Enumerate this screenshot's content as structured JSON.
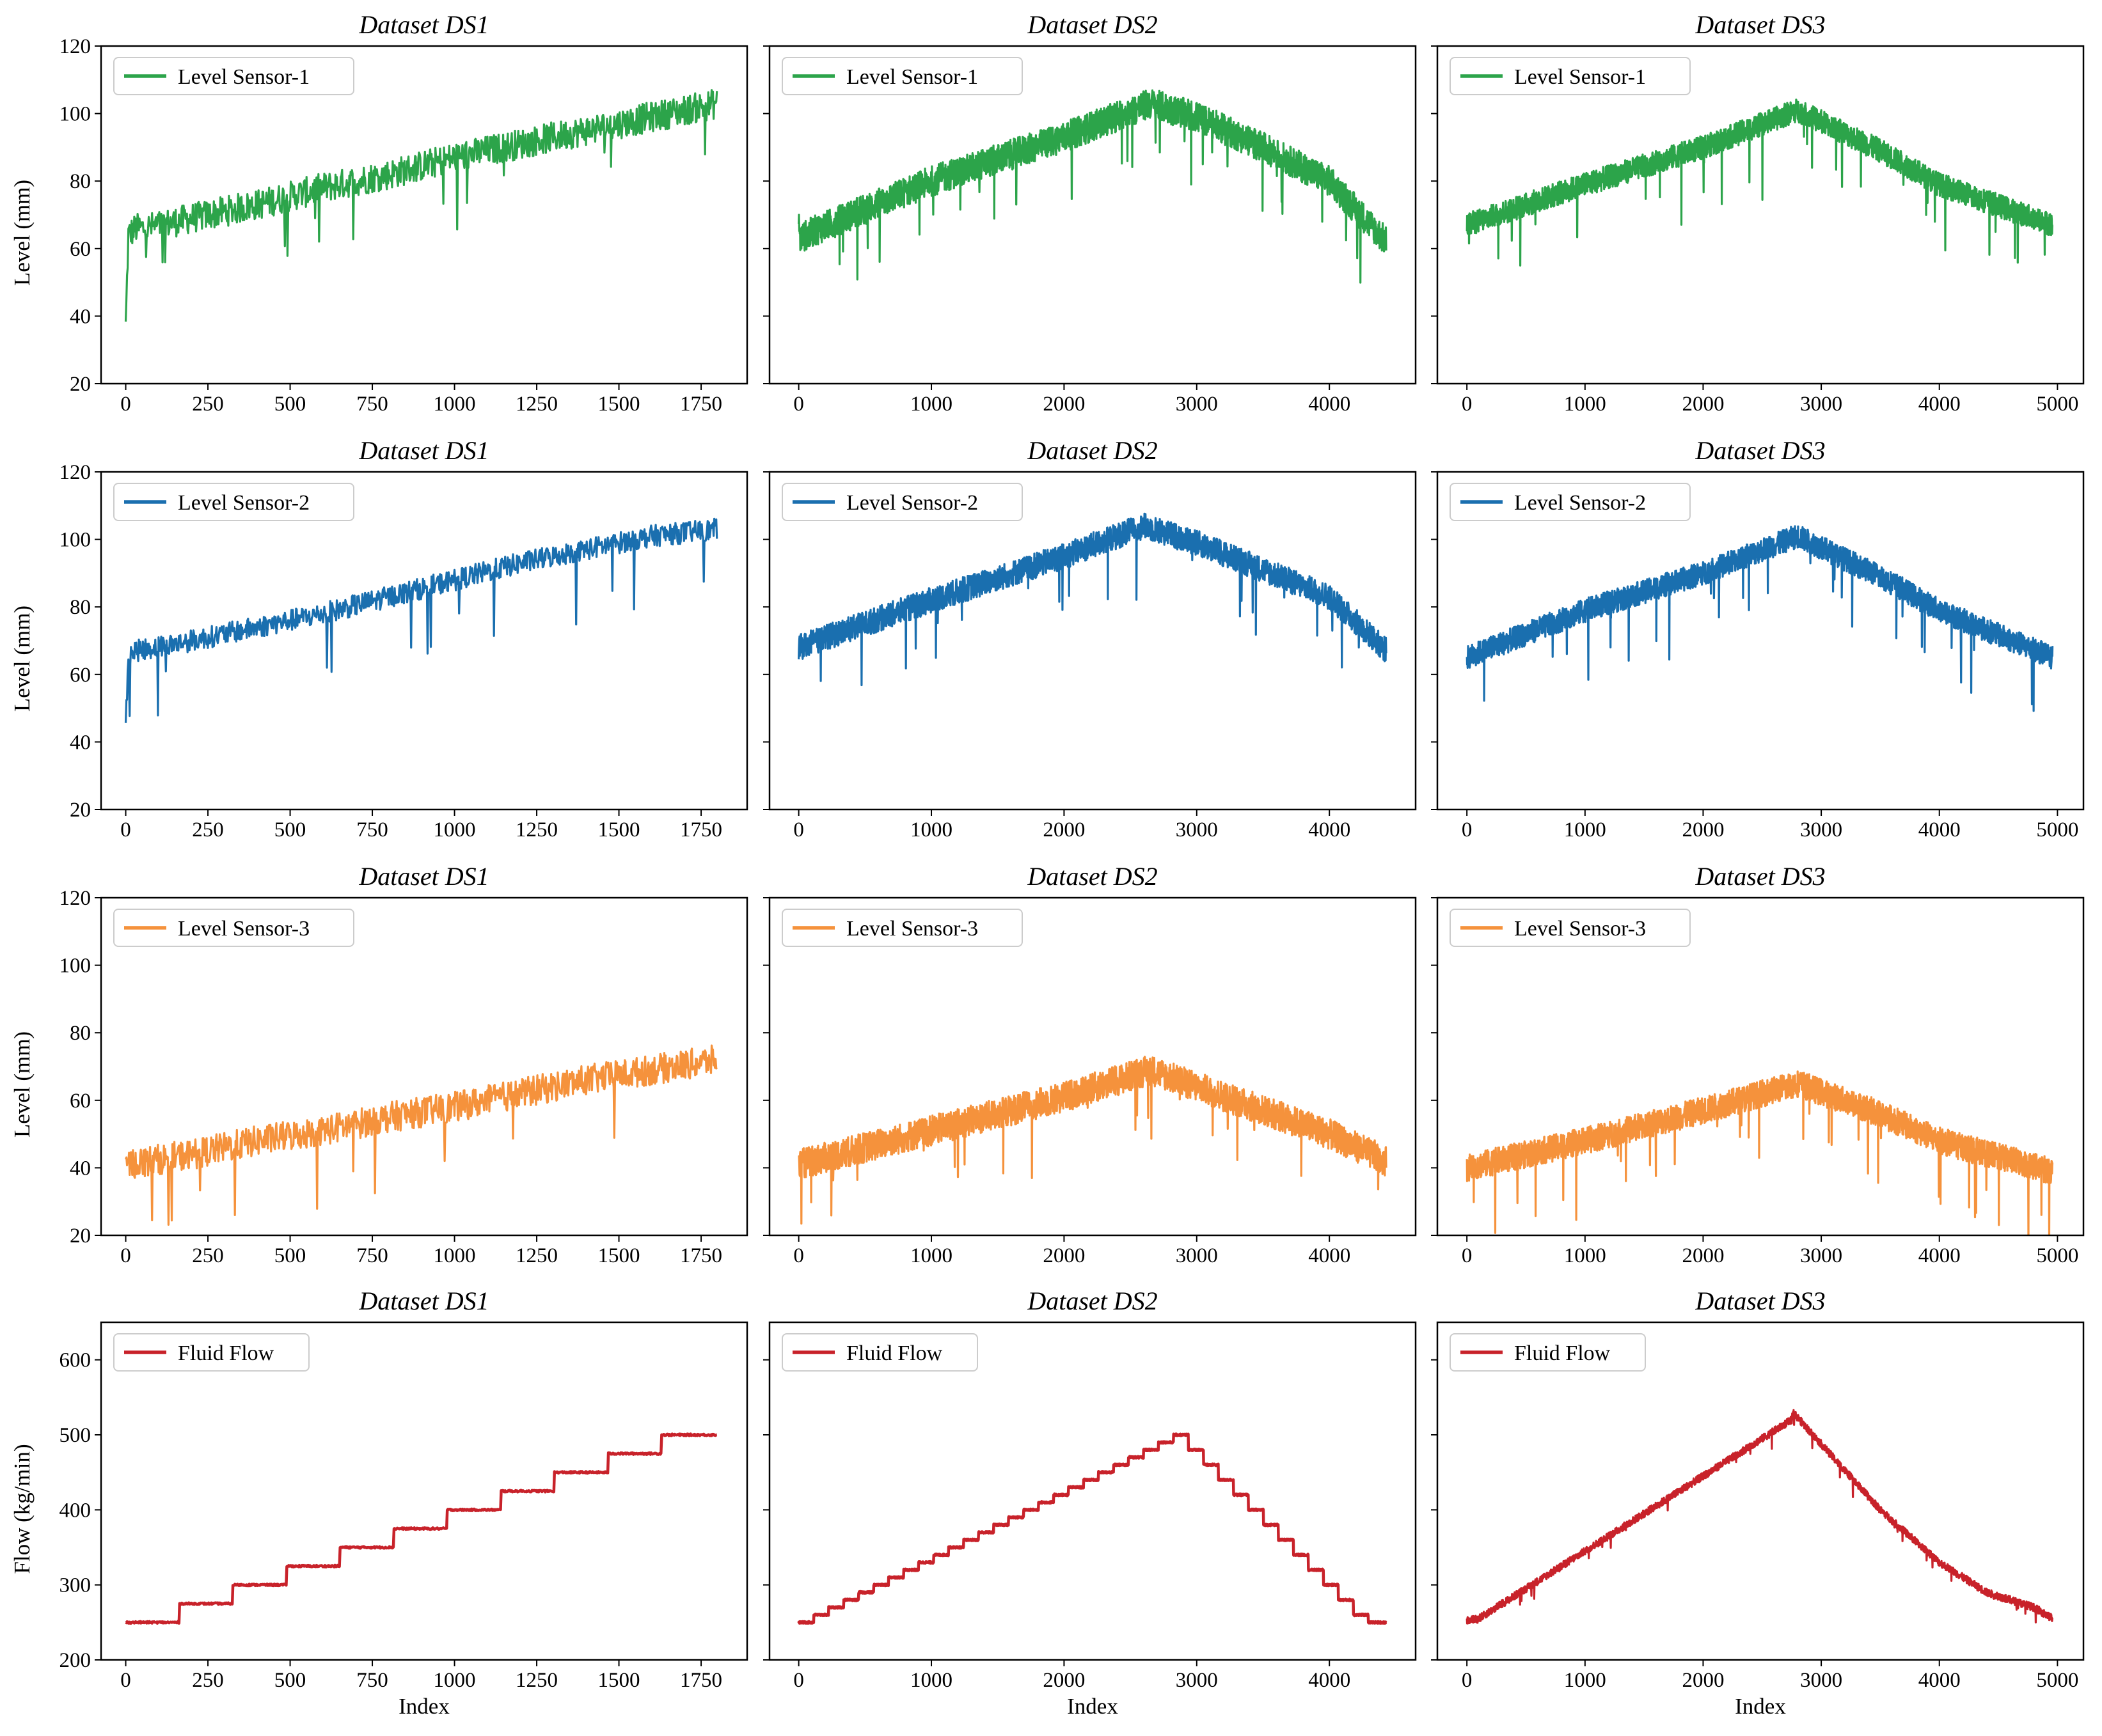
{
  "figure": {
    "row_ylabels": [
      "Level (mm)",
      "Level (mm)",
      "Level (mm)",
      "Flow (kg/min)"
    ],
    "xlabel": "Index"
  },
  "chart_data": [
    {
      "type": "line",
      "row": 0,
      "col": 0,
      "title": "Dataset DS1",
      "legend": "Level Sensor-1",
      "color": "#2ca44a",
      "xlim": [
        -75,
        1890
      ],
      "ylim": [
        20,
        120
      ],
      "xticks": [
        0,
        250,
        500,
        750,
        1000,
        1250,
        1500,
        1750
      ],
      "yticks": [
        20,
        40,
        60,
        80,
        100,
        120
      ],
      "xlabel": "",
      "ylabel": "Level (mm)",
      "n": 1800,
      "x": [
        0,
        8,
        30,
        60,
        200,
        400,
        600,
        800,
        1000,
        1200,
        1400,
        1600,
        1700,
        1800
      ],
      "y": [
        37,
        64,
        66,
        66,
        69,
        73,
        78,
        82,
        87,
        91,
        95,
        99,
        101,
        103
      ],
      "noise": 4.5
    },
    {
      "type": "line",
      "row": 0,
      "col": 1,
      "title": "Dataset DS2",
      "legend": "Level Sensor-1",
      "color": "#2ca44a",
      "xlim": [
        -220,
        4650
      ],
      "ylim": [
        20,
        120
      ],
      "xticks": [
        0,
        1000,
        2000,
        3000,
        4000
      ],
      "yticks": [
        20,
        40,
        60,
        80,
        100,
        120
      ],
      "xlabel": "",
      "ylabel": "",
      "n": 4430,
      "x": [
        0,
        10,
        100,
        1000,
        2000,
        2650,
        3000,
        3500,
        4000,
        4430
      ],
      "y": [
        70,
        63,
        65,
        80,
        93,
        103,
        99,
        90,
        80,
        62
      ],
      "noise": 4.5
    },
    {
      "type": "line",
      "row": 0,
      "col": 2,
      "title": "Dataset DS3",
      "legend": "Level Sensor-1",
      "color": "#2ca44a",
      "xlim": [
        -250,
        5220
      ],
      "ylim": [
        20,
        120
      ],
      "xticks": [
        0,
        1000,
        2000,
        3000,
        4000,
        5000
      ],
      "yticks": [
        20,
        40,
        60,
        80,
        100,
        120
      ],
      "xlabel": "",
      "ylabel": "",
      "n": 4960,
      "x": [
        0,
        1000,
        2000,
        2800,
        3500,
        4000,
        4960
      ],
      "y": [
        67,
        79,
        90,
        101,
        89,
        79,
        67
      ],
      "noise": 3.5
    },
    {
      "type": "line",
      "row": 1,
      "col": 0,
      "title": "Dataset DS1",
      "legend": "Level Sensor-2",
      "color": "#1a6faf",
      "xlim": [
        -75,
        1890
      ],
      "ylim": [
        20,
        120
      ],
      "xticks": [
        0,
        250,
        500,
        750,
        1000,
        1250,
        1500,
        1750
      ],
      "yticks": [
        20,
        40,
        60,
        80,
        100,
        120
      ],
      "xlabel": "",
      "ylabel": "Level (mm)",
      "n": 1800,
      "x": [
        0,
        8,
        30,
        200,
        400,
        600,
        800,
        1000,
        1200,
        1400,
        1600,
        1800
      ],
      "y": [
        44,
        66,
        67,
        70,
        74,
        78,
        83,
        88,
        93,
        97,
        101,
        103
      ],
      "noise": 3.2
    },
    {
      "type": "line",
      "row": 1,
      "col": 1,
      "title": "Dataset DS2",
      "legend": "Level Sensor-2",
      "color": "#1a6faf",
      "xlim": [
        -220,
        4650
      ],
      "ylim": [
        20,
        120
      ],
      "xticks": [
        0,
        1000,
        2000,
        3000,
        4000
      ],
      "yticks": [
        20,
        40,
        60,
        80,
        100,
        120
      ],
      "xlabel": "",
      "ylabel": "",
      "n": 4430,
      "x": [
        0,
        1000,
        2000,
        2600,
        3000,
        4000,
        4430
      ],
      "y": [
        68,
        82,
        95,
        104,
        99,
        83,
        67
      ],
      "noise": 3.8
    },
    {
      "type": "line",
      "row": 1,
      "col": 2,
      "title": "Dataset DS3",
      "legend": "Level Sensor-2",
      "color": "#1a6faf",
      "xlim": [
        -250,
        5220
      ],
      "ylim": [
        20,
        120
      ],
      "xticks": [
        0,
        1000,
        2000,
        3000,
        4000,
        5000
      ],
      "yticks": [
        20,
        40,
        60,
        80,
        100,
        120
      ],
      "xlabel": "",
      "ylabel": "",
      "n": 4960,
      "x": [
        0,
        1000,
        2000,
        2800,
        3500,
        4000,
        4960
      ],
      "y": [
        65,
        79,
        90,
        101,
        89,
        79,
        65
      ],
      "noise": 3.5
    },
    {
      "type": "line",
      "row": 2,
      "col": 0,
      "title": "Dataset DS1",
      "legend": "Level Sensor-3",
      "color": "#f5923c",
      "xlim": [
        -75,
        1890
      ],
      "ylim": [
        20,
        120
      ],
      "xticks": [
        0,
        250,
        500,
        750,
        1000,
        1250,
        1500,
        1750
      ],
      "yticks": [
        20,
        40,
        60,
        80,
        100,
        120
      ],
      "xlabel": "",
      "ylabel": "Level (mm)",
      "n": 1800,
      "x": [
        0,
        200,
        400,
        600,
        800,
        1000,
        1200,
        1400,
        1600,
        1800
      ],
      "y": [
        41,
        44,
        48,
        51,
        55,
        58,
        62,
        66,
        69,
        72
      ],
      "noise": 4.5
    },
    {
      "type": "line",
      "row": 2,
      "col": 1,
      "title": "Dataset DS2",
      "legend": "Level Sensor-3",
      "color": "#f5923c",
      "xlim": [
        -220,
        4650
      ],
      "ylim": [
        20,
        120
      ],
      "xticks": [
        0,
        1000,
        2000,
        3000,
        4000
      ],
      "yticks": [
        20,
        40,
        60,
        80,
        100,
        120
      ],
      "xlabel": "",
      "ylabel": "",
      "n": 4430,
      "x": [
        0,
        1000,
        2000,
        2650,
        3000,
        4000,
        4430
      ],
      "y": [
        41,
        51,
        61,
        69,
        64,
        50,
        42
      ],
      "noise": 4.5
    },
    {
      "type": "line",
      "row": 2,
      "col": 2,
      "title": "Dataset DS3",
      "legend": "Level Sensor-3",
      "color": "#f5923c",
      "xlim": [
        -250,
        5220
      ],
      "ylim": [
        20,
        120
      ],
      "xticks": [
        0,
        1000,
        2000,
        3000,
        4000,
        5000
      ],
      "yticks": [
        20,
        40,
        60,
        80,
        100,
        120
      ],
      "xlabel": "",
      "ylabel": "",
      "n": 4960,
      "x": [
        0,
        1000,
        2000,
        2800,
        3500,
        4000,
        4960
      ],
      "y": [
        40,
        48,
        57,
        65,
        56,
        48,
        39
      ],
      "noise": 4.0
    },
    {
      "type": "line",
      "row": 3,
      "col": 0,
      "title": "Dataset DS1",
      "legend": "Fluid Flow",
      "color": "#c8222a",
      "xlim": [
        -75,
        1890
      ],
      "ylim": [
        200,
        650
      ],
      "xticks": [
        0,
        250,
        500,
        750,
        1000,
        1250,
        1500,
        1750
      ],
      "yticks": [
        200,
        300,
        400,
        500,
        600
      ],
      "xlabel": "Index",
      "ylabel": "Flow (kg/min)",
      "n": 1800,
      "steps": {
        "start": 250,
        "step": 25,
        "count": 11,
        "width": 163
      },
      "noise": 1.2
    },
    {
      "type": "line",
      "row": 3,
      "col": 1,
      "title": "Dataset DS2",
      "legend": "Fluid Flow",
      "color": "#c8222a",
      "xlim": [
        -220,
        4650
      ],
      "ylim": [
        200,
        650
      ],
      "xticks": [
        0,
        1000,
        2000,
        3000,
        4000
      ],
      "yticks": [
        200,
        300,
        400,
        500,
        600
      ],
      "xlabel": "Index",
      "ylabel": "",
      "n": 4430,
      "steps": {
        "levels": [
          250,
          260,
          270,
          280,
          290,
          300,
          310,
          320,
          330,
          340,
          350,
          360,
          370,
          380,
          390,
          400,
          410,
          420,
          430,
          440,
          450,
          460,
          470,
          480,
          490,
          500,
          480,
          460,
          440,
          420,
          400,
          380,
          360,
          340,
          320,
          300,
          280,
          260,
          250
        ],
        "width": 113
      },
      "noise": 1.2
    },
    {
      "type": "line",
      "row": 3,
      "col": 2,
      "title": "Dataset DS3",
      "legend": "Fluid Flow",
      "color": "#c8222a",
      "xlim": [
        -250,
        5220
      ],
      "ylim": [
        200,
        650
      ],
      "xticks": [
        0,
        1000,
        2000,
        3000,
        4000,
        5000
      ],
      "yticks": [
        200,
        300,
        400,
        500,
        600
      ],
      "xlabel": "Index",
      "ylabel": "",
      "n": 4960,
      "x": [
        0,
        100,
        2750,
        2760,
        3100,
        3500,
        4000,
        4400,
        4800,
        4960
      ],
      "y": [
        253,
        255,
        520,
        530,
        470,
        400,
        330,
        290,
        270,
        255
      ],
      "noise": 5
    }
  ]
}
